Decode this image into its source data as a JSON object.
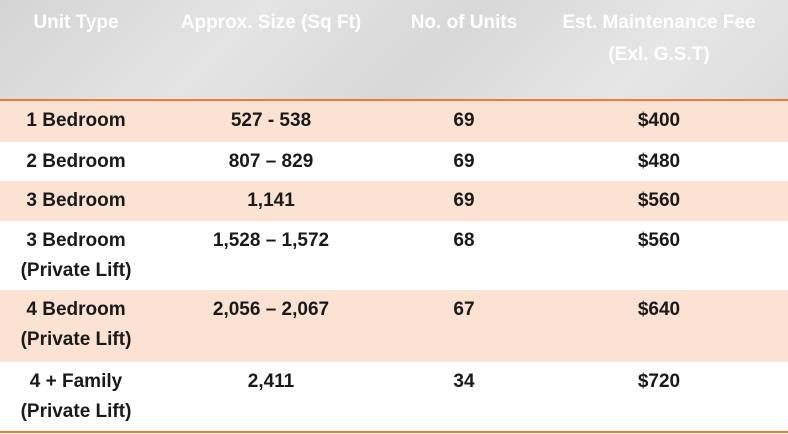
{
  "table": {
    "header": [
      [
        "Unit Type"
      ],
      [
        "Approx. Size (Sq Ft)"
      ],
      [
        "No. of Units"
      ],
      [
        "Est. Maintenance Fee",
        "(Exl. G.S.T)"
      ]
    ],
    "rows": [
      [
        [
          "1 Bedroom"
        ],
        [
          "527 - 538"
        ],
        [
          "69"
        ],
        [
          "$400"
        ]
      ],
      [
        [
          "2 Bedroom"
        ],
        [
          "807 – 829"
        ],
        [
          "69"
        ],
        [
          "$480"
        ]
      ],
      [
        [
          "3 Bedroom"
        ],
        [
          "1,141"
        ],
        [
          "69"
        ],
        [
          "$560"
        ]
      ],
      [
        [
          "3 Bedroom",
          "(Private Lift)"
        ],
        [
          "1,528 – 1,572"
        ],
        [
          "68"
        ],
        [
          "$560"
        ]
      ],
      [
        [
          "4 Bedroom",
          "(Private Lift)"
        ],
        [
          "2,056 – 2,067"
        ],
        [
          "67"
        ],
        [
          "$640"
        ]
      ],
      [
        [
          "4 + Family",
          "(Private Lift)"
        ],
        [
          "2,411"
        ],
        [
          "34"
        ],
        [
          "$720"
        ]
      ]
    ]
  }
}
